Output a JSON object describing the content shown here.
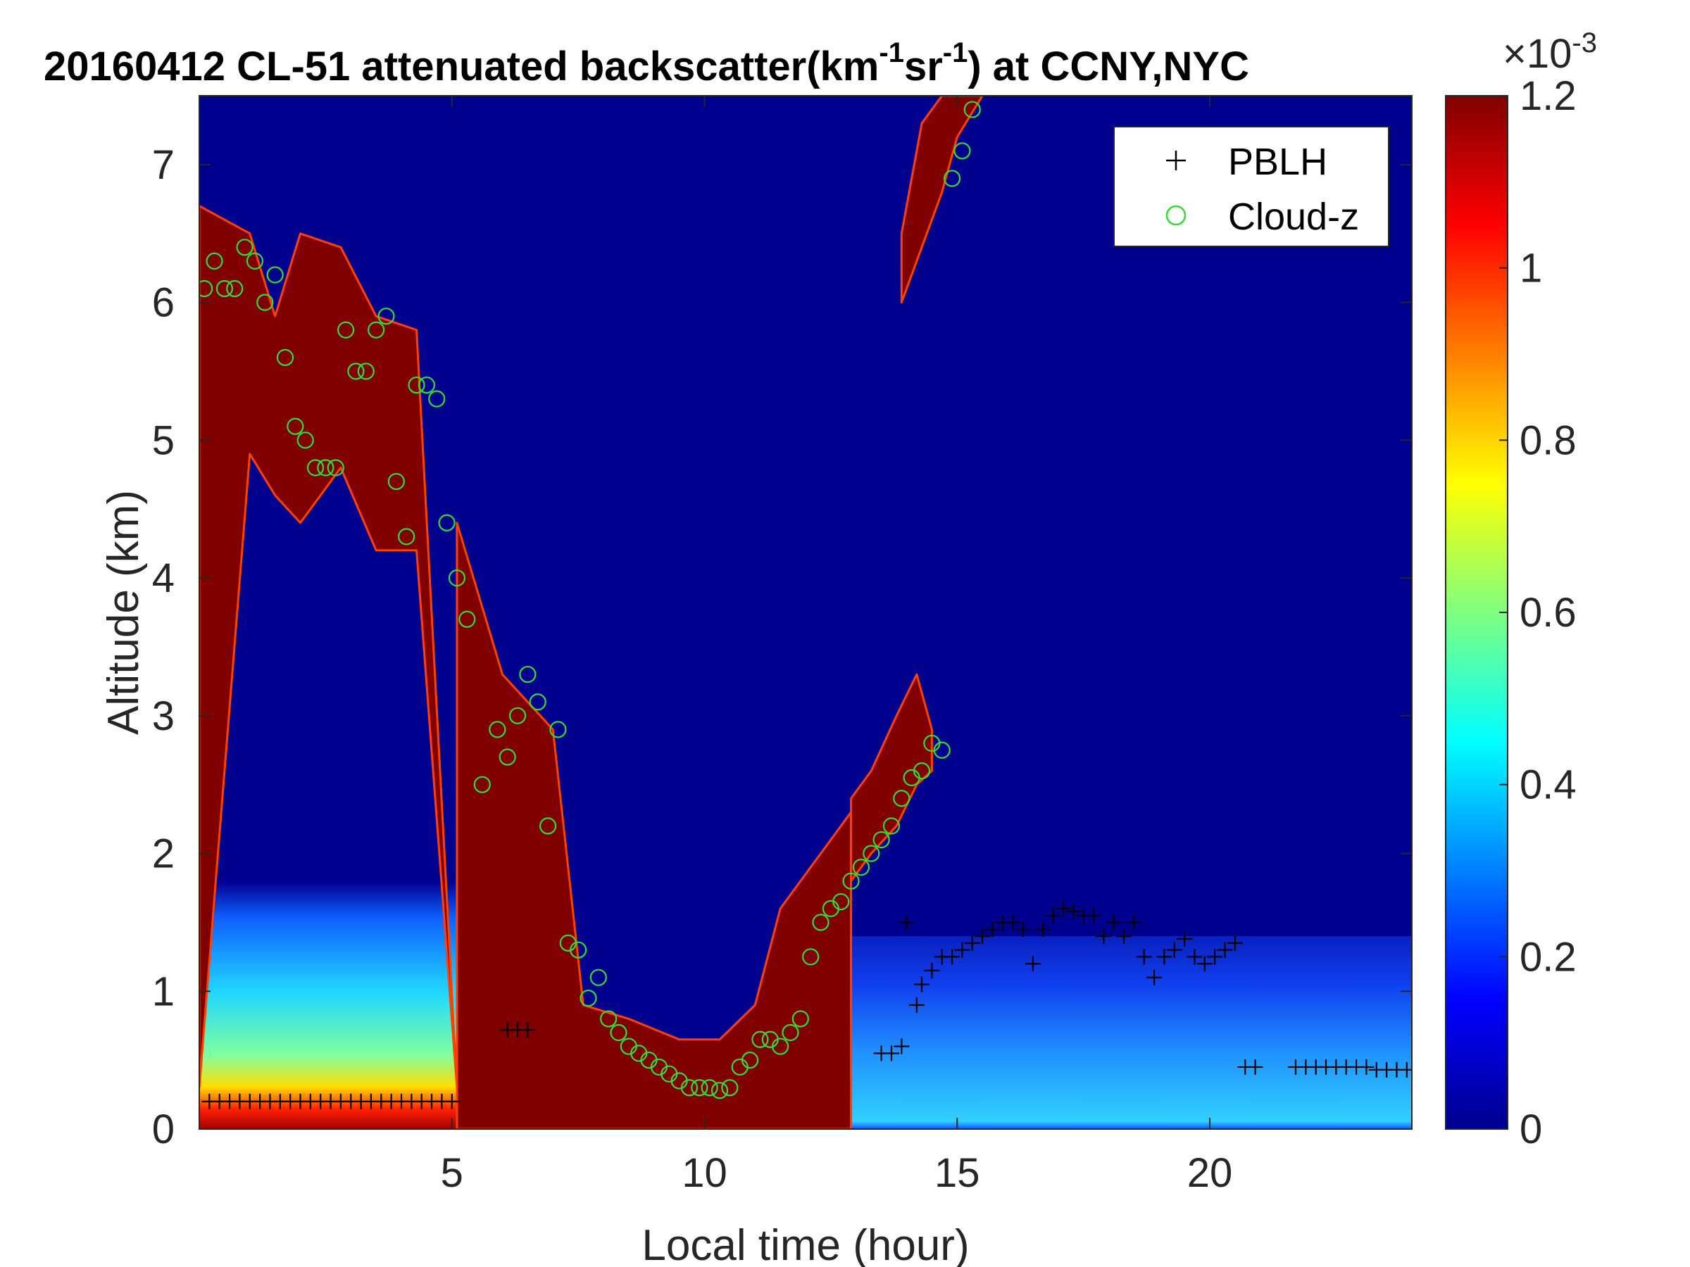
{
  "chart_data": {
    "type": "heatmap",
    "title": {
      "prefix": "20160412  CL-51 attenuated backscatter(km",
      "sup1": "-1",
      "mid": "sr",
      "sup2": "-1",
      "suffix": ") at CCNY,NYC"
    },
    "xlabel": "Local time (hour)",
    "ylabel": "Altitude (km)",
    "xlim": [
      0,
      24
    ],
    "ylim": [
      0,
      7.5
    ],
    "x_ticks": [
      5,
      10,
      15,
      20
    ],
    "y_ticks": [
      0,
      1,
      2,
      3,
      4,
      5,
      6,
      7
    ],
    "colorbar": {
      "range": [
        0,
        0.0012
      ],
      "ticks": [
        "0",
        "0.2",
        "0.4",
        "0.6",
        "0.8",
        "1",
        "1.2"
      ],
      "tick_values": [
        0,
        0.2,
        0.4,
        0.6,
        0.8,
        1.0,
        1.2
      ],
      "exponent_base": "×10",
      "exponent": "-3",
      "colormap": "jet"
    },
    "legend": {
      "placement": "top-right",
      "entries": [
        {
          "name": "PBLH",
          "marker": "+",
          "color": "#000000"
        },
        {
          "name": "Cloud-z",
          "marker": "o",
          "color": "#33dd33"
        }
      ]
    },
    "cloud_layers": [
      {
        "t": [
          0,
          1.0,
          1.5,
          2.0,
          2.8,
          3.5,
          4.3,
          5.1
        ],
        "base": [
          0.3,
          4.9,
          4.6,
          4.4,
          4.8,
          4.2,
          4.2,
          0.3
        ],
        "top": [
          6.7,
          6.5,
          5.9,
          6.5,
          6.4,
          5.9,
          5.8,
          0.3
        ]
      },
      {
        "t": [
          5.1,
          6.0,
          7.0,
          7.6,
          8.5,
          9.5,
          10.3,
          11.0,
          11.5,
          12.5,
          12.9
        ],
        "base": [
          0.0,
          0.0,
          0.0,
          0.0,
          0.0,
          0.0,
          0.0,
          0.0,
          0.0,
          0.0,
          0.0
        ],
        "top": [
          4.4,
          3.3,
          2.9,
          0.9,
          0.8,
          0.65,
          0.65,
          0.9,
          1.6,
          2.1,
          2.3
        ]
      },
      {
        "t": [
          12.9,
          13.3,
          13.8,
          14.2,
          14.5
        ],
        "base": [
          1.8,
          2.0,
          2.2,
          2.5,
          2.6
        ],
        "top": [
          2.4,
          2.6,
          3.0,
          3.3,
          2.9
        ]
      },
      {
        "t": [
          13.9,
          14.3,
          14.7,
          15.0,
          15.5
        ],
        "base": [
          6.0,
          6.4,
          6.8,
          7.2,
          7.5
        ],
        "top": [
          6.5,
          7.3,
          7.5,
          7.5,
          7.5
        ]
      }
    ],
    "aerosol_layers": [
      {
        "t": [
          0,
          5.1
        ],
        "top_km": 1.8,
        "intensity": 0.45
      },
      {
        "t": [
          12.9,
          24
        ],
        "top_km": 1.4,
        "intensity": 0.3
      }
    ],
    "series": [
      {
        "name": "PBLH",
        "x": [
          0.2,
          0.4,
          0.6,
          0.8,
          1.0,
          1.2,
          1.4,
          1.6,
          1.8,
          2.0,
          2.2,
          2.4,
          2.6,
          2.8,
          3.0,
          3.2,
          3.4,
          3.6,
          3.8,
          4.0,
          4.2,
          4.4,
          4.6,
          4.8,
          5.0,
          6.1,
          6.3,
          6.5,
          13.5,
          13.7,
          13.9,
          14.0,
          14.2,
          14.3,
          14.5,
          14.7,
          14.9,
          15.1,
          15.3,
          15.5,
          15.7,
          15.9,
          16.1,
          16.3,
          16.5,
          16.7,
          16.9,
          17.1,
          17.3,
          17.5,
          17.7,
          17.9,
          18.1,
          18.3,
          18.5,
          18.7,
          18.9,
          19.1,
          19.3,
          19.5,
          19.7,
          19.9,
          20.1,
          20.3,
          20.5,
          20.7,
          20.9,
          21.7,
          21.9,
          22.1,
          22.3,
          22.5,
          22.7,
          22.9,
          23.1,
          23.3,
          23.5,
          23.7,
          23.9
        ],
        "y": [
          0.2,
          0.2,
          0.2,
          0.2,
          0.2,
          0.2,
          0.2,
          0.2,
          0.2,
          0.2,
          0.2,
          0.2,
          0.2,
          0.2,
          0.2,
          0.2,
          0.2,
          0.2,
          0.2,
          0.2,
          0.2,
          0.2,
          0.2,
          0.2,
          0.2,
          0.72,
          0.72,
          0.72,
          0.55,
          0.55,
          0.6,
          1.5,
          0.9,
          1.05,
          1.15,
          1.25,
          1.25,
          1.3,
          1.35,
          1.4,
          1.45,
          1.5,
          1.5,
          1.45,
          1.2,
          1.45,
          1.55,
          1.6,
          1.58,
          1.55,
          1.55,
          1.4,
          1.5,
          1.4,
          1.5,
          1.25,
          1.1,
          1.25,
          1.3,
          1.38,
          1.25,
          1.2,
          1.25,
          1.3,
          1.35,
          0.45,
          0.45,
          0.45,
          0.45,
          0.45,
          0.45,
          0.45,
          0.45,
          0.45,
          0.45,
          0.43,
          0.43,
          0.43,
          0.43
        ]
      },
      {
        "name": "Cloud-z",
        "x": [
          0.1,
          0.3,
          0.5,
          0.7,
          0.9,
          1.1,
          1.3,
          1.5,
          1.7,
          1.9,
          2.1,
          2.3,
          2.5,
          2.7,
          2.9,
          3.1,
          3.3,
          3.5,
          3.7,
          3.9,
          4.1,
          4.3,
          4.5,
          4.7,
          4.9,
          5.1,
          5.3,
          5.6,
          5.9,
          6.1,
          6.3,
          6.5,
          6.7,
          6.9,
          7.1,
          7.3,
          7.5,
          7.7,
          7.9,
          8.1,
          8.3,
          8.5,
          8.7,
          8.9,
          9.1,
          9.3,
          9.5,
          9.7,
          9.9,
          10.1,
          10.3,
          10.5,
          10.7,
          10.9,
          11.1,
          11.3,
          11.5,
          11.7,
          11.9,
          12.1,
          12.3,
          12.5,
          12.7,
          12.9,
          13.1,
          13.3,
          13.5,
          13.7,
          13.9,
          14.1,
          14.3,
          14.5,
          14.7,
          14.9,
          15.1,
          15.3
        ],
        "y": [
          6.1,
          6.3,
          6.1,
          6.1,
          6.4,
          6.3,
          6.0,
          6.2,
          5.6,
          5.1,
          5.0,
          4.8,
          4.8,
          4.8,
          5.8,
          5.5,
          5.5,
          5.8,
          5.9,
          4.7,
          4.3,
          5.4,
          5.4,
          5.3,
          4.4,
          4.0,
          3.7,
          2.5,
          2.9,
          2.7,
          3.0,
          3.3,
          3.1,
          2.2,
          2.9,
          1.35,
          1.3,
          0.95,
          1.1,
          0.8,
          0.7,
          0.6,
          0.55,
          0.5,
          0.45,
          0.4,
          0.35,
          0.3,
          0.3,
          0.3,
          0.28,
          0.3,
          0.45,
          0.5,
          0.65,
          0.65,
          0.6,
          0.7,
          0.8,
          1.25,
          1.5,
          1.6,
          1.65,
          1.8,
          1.9,
          2.0,
          2.1,
          2.2,
          2.4,
          2.55,
          2.6,
          2.8,
          2.75,
          6.9,
          7.1,
          7.4
        ]
      }
    ]
  }
}
